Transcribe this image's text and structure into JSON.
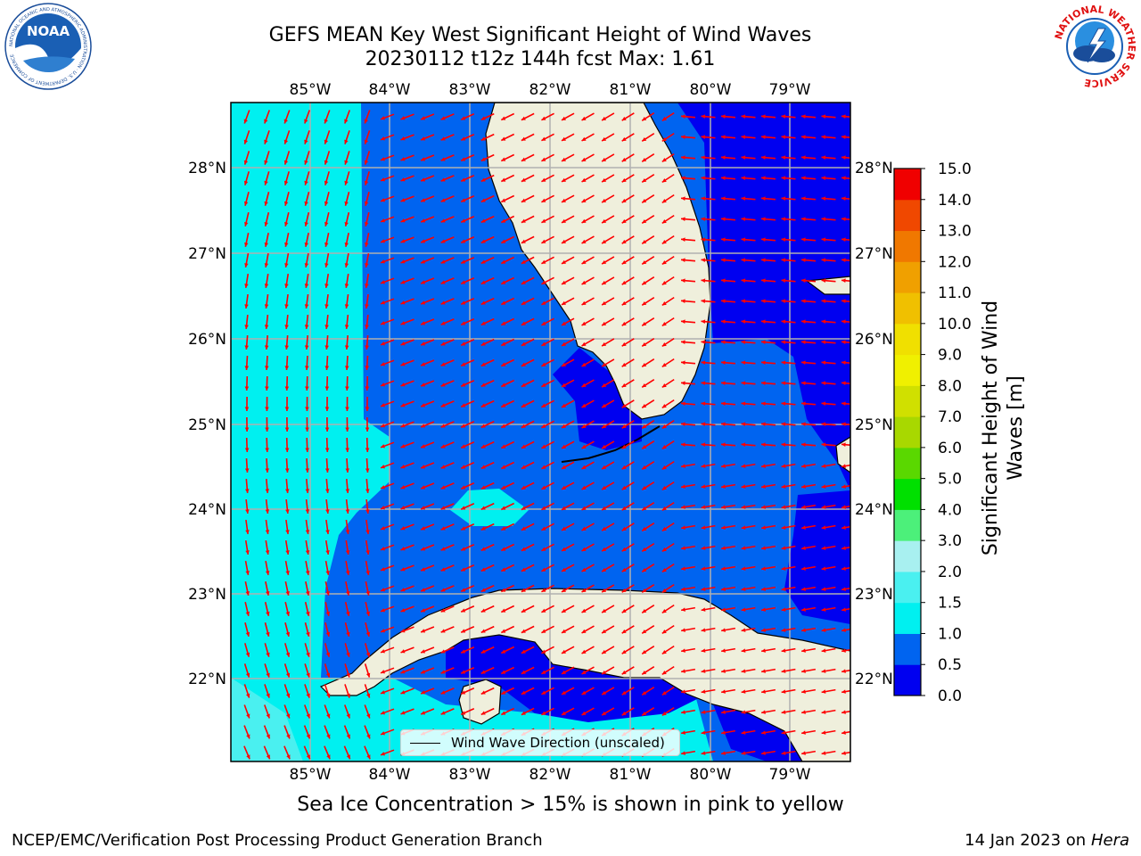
{
  "header": {
    "title_line1": "GEFS MEAN Key West Significant Height of Wind Waves",
    "title_line2": "20230112 t12z 144h fcst   Max: 1.61"
  },
  "logos": {
    "left": {
      "icon": "noaa-logo-icon",
      "text": "NOAA",
      "ring_text": "NATIONAL OCEANIC AND ATMOSPHERIC ADMINISTRATION · U.S. DEPARTMENT OF COMMERCE"
    },
    "right": {
      "icon": "nws-logo-icon",
      "ring_text": "NATIONAL WEATHER SERVICE"
    }
  },
  "map": {
    "lon_ticks": [
      "85°W",
      "84°W",
      "83°W",
      "82°W",
      "81°W",
      "80°W",
      "79°W"
    ],
    "lat_ticks": [
      "28°N",
      "27°N",
      "26°N",
      "25°N",
      "24°N",
      "23°N",
      "22°N"
    ],
    "extent": {
      "lon_min": -86.0,
      "lon_max": -78.25,
      "lat_min": 21.0,
      "lat_max": 28.75
    },
    "grid": true,
    "colors": {
      "land": "#efefdc",
      "arrow": "#ff0000",
      "grid": "#b0b0b0"
    },
    "legend_label": "Wind Wave Direction (unscaled)"
  },
  "colorbar": {
    "label": "Significant Height of Wind Waves [m]",
    "label_line1": "Significant Height of Wind",
    "label_line2": "Waves [m]",
    "tick_labels": [
      "0.0",
      "0.5",
      "1.0",
      "1.5",
      "2.0",
      "3.0",
      "4.0",
      "5.0",
      "6.0",
      "7.0",
      "8.0",
      "9.0",
      "10.0",
      "11.0",
      "12.0",
      "13.0",
      "14.0",
      "15.0"
    ],
    "colors": [
      "#0000f0",
      "#0064f0",
      "#00f0f0",
      "#4af0f0",
      "#a8f0f0",
      "#4cf07a",
      "#00e000",
      "#5ad800",
      "#a8d800",
      "#d0e000",
      "#f0f000",
      "#f0e000",
      "#f0c000",
      "#f0a000",
      "#f07800",
      "#f04800",
      "#f00000"
    ]
  },
  "footer": {
    "note": "Sea Ice Concentration > 15% is shown in pink to yellow",
    "credit": "NCEP/EMC/Verification Post Processing Product Generation Branch",
    "date_prefix": "14 Jan 2023 on ",
    "machine": "Hera"
  }
}
